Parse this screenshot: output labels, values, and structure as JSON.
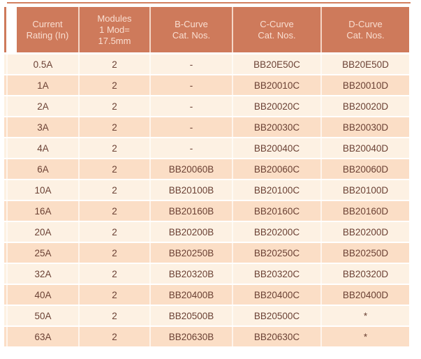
{
  "colors": {
    "page_bg": "#FFFFFF",
    "top_line": "#D2805F",
    "header_bg": "#CE7A5B",
    "header_text": "#F9DED1",
    "row_light": "#FDF1E3",
    "row_dark": "#FBDEC6",
    "body_text": "#6B4134"
  },
  "table": {
    "headers": [
      "Current\nRating (In)",
      "Modules\n1 Mod=\n17.5mm",
      "B-Curve\nCat. Nos.",
      "C-Curve\nCat. Nos.",
      "D-Curve\nCat. Nos."
    ],
    "rows": [
      {
        "current": "0.5A",
        "modules": "2",
        "b_curve": "-",
        "c_curve": "BB20E50C",
        "d_curve": "BB20E50D"
      },
      {
        "current": "1A",
        "modules": "2",
        "b_curve": "-",
        "c_curve": "BB20010C",
        "d_curve": "BB20010D"
      },
      {
        "current": "2A",
        "modules": "2",
        "b_curve": "-",
        "c_curve": "BB20020C",
        "d_curve": "BB20020D"
      },
      {
        "current": "3A",
        "modules": "2",
        "b_curve": "-",
        "c_curve": "BB20030C",
        "d_curve": "BB20030D"
      },
      {
        "current": "4A",
        "modules": "2",
        "b_curve": "-",
        "c_curve": "BB20040C",
        "d_curve": "BB20040D"
      },
      {
        "current": "6A",
        "modules": "2",
        "b_curve": "BB20060B",
        "c_curve": "BB20060C",
        "d_curve": "BB20060D"
      },
      {
        "current": "10A",
        "modules": "2",
        "b_curve": "BB20100B",
        "c_curve": "BB20100C",
        "d_curve": "BB20100D"
      },
      {
        "current": "16A",
        "modules": "2",
        "b_curve": "BB20160B",
        "c_curve": "BB20160C",
        "d_curve": "BB20160D"
      },
      {
        "current": "20A",
        "modules": "2",
        "b_curve": "BB20200B",
        "c_curve": "BB20200C",
        "d_curve": "BB20200D"
      },
      {
        "current": "25A",
        "modules": "2",
        "b_curve": "BB20250B",
        "c_curve": "BB20250C",
        "d_curve": "BB20250D"
      },
      {
        "current": "32A",
        "modules": "2",
        "b_curve": "BB20320B",
        "c_curve": "BB20320C",
        "d_curve": "BB20320D"
      },
      {
        "current": "40A",
        "modules": "2",
        "b_curve": "BB20400B",
        "c_curve": "BB20400C",
        "d_curve": "BB20400D"
      },
      {
        "current": "50A",
        "modules": "2",
        "b_curve": "BB20500B",
        "c_curve": "BB20500C",
        "d_curve": "*"
      },
      {
        "current": "63A",
        "modules": "2",
        "b_curve": "BB20630B",
        "c_curve": "BB20630C",
        "d_curve": "*"
      }
    ]
  }
}
